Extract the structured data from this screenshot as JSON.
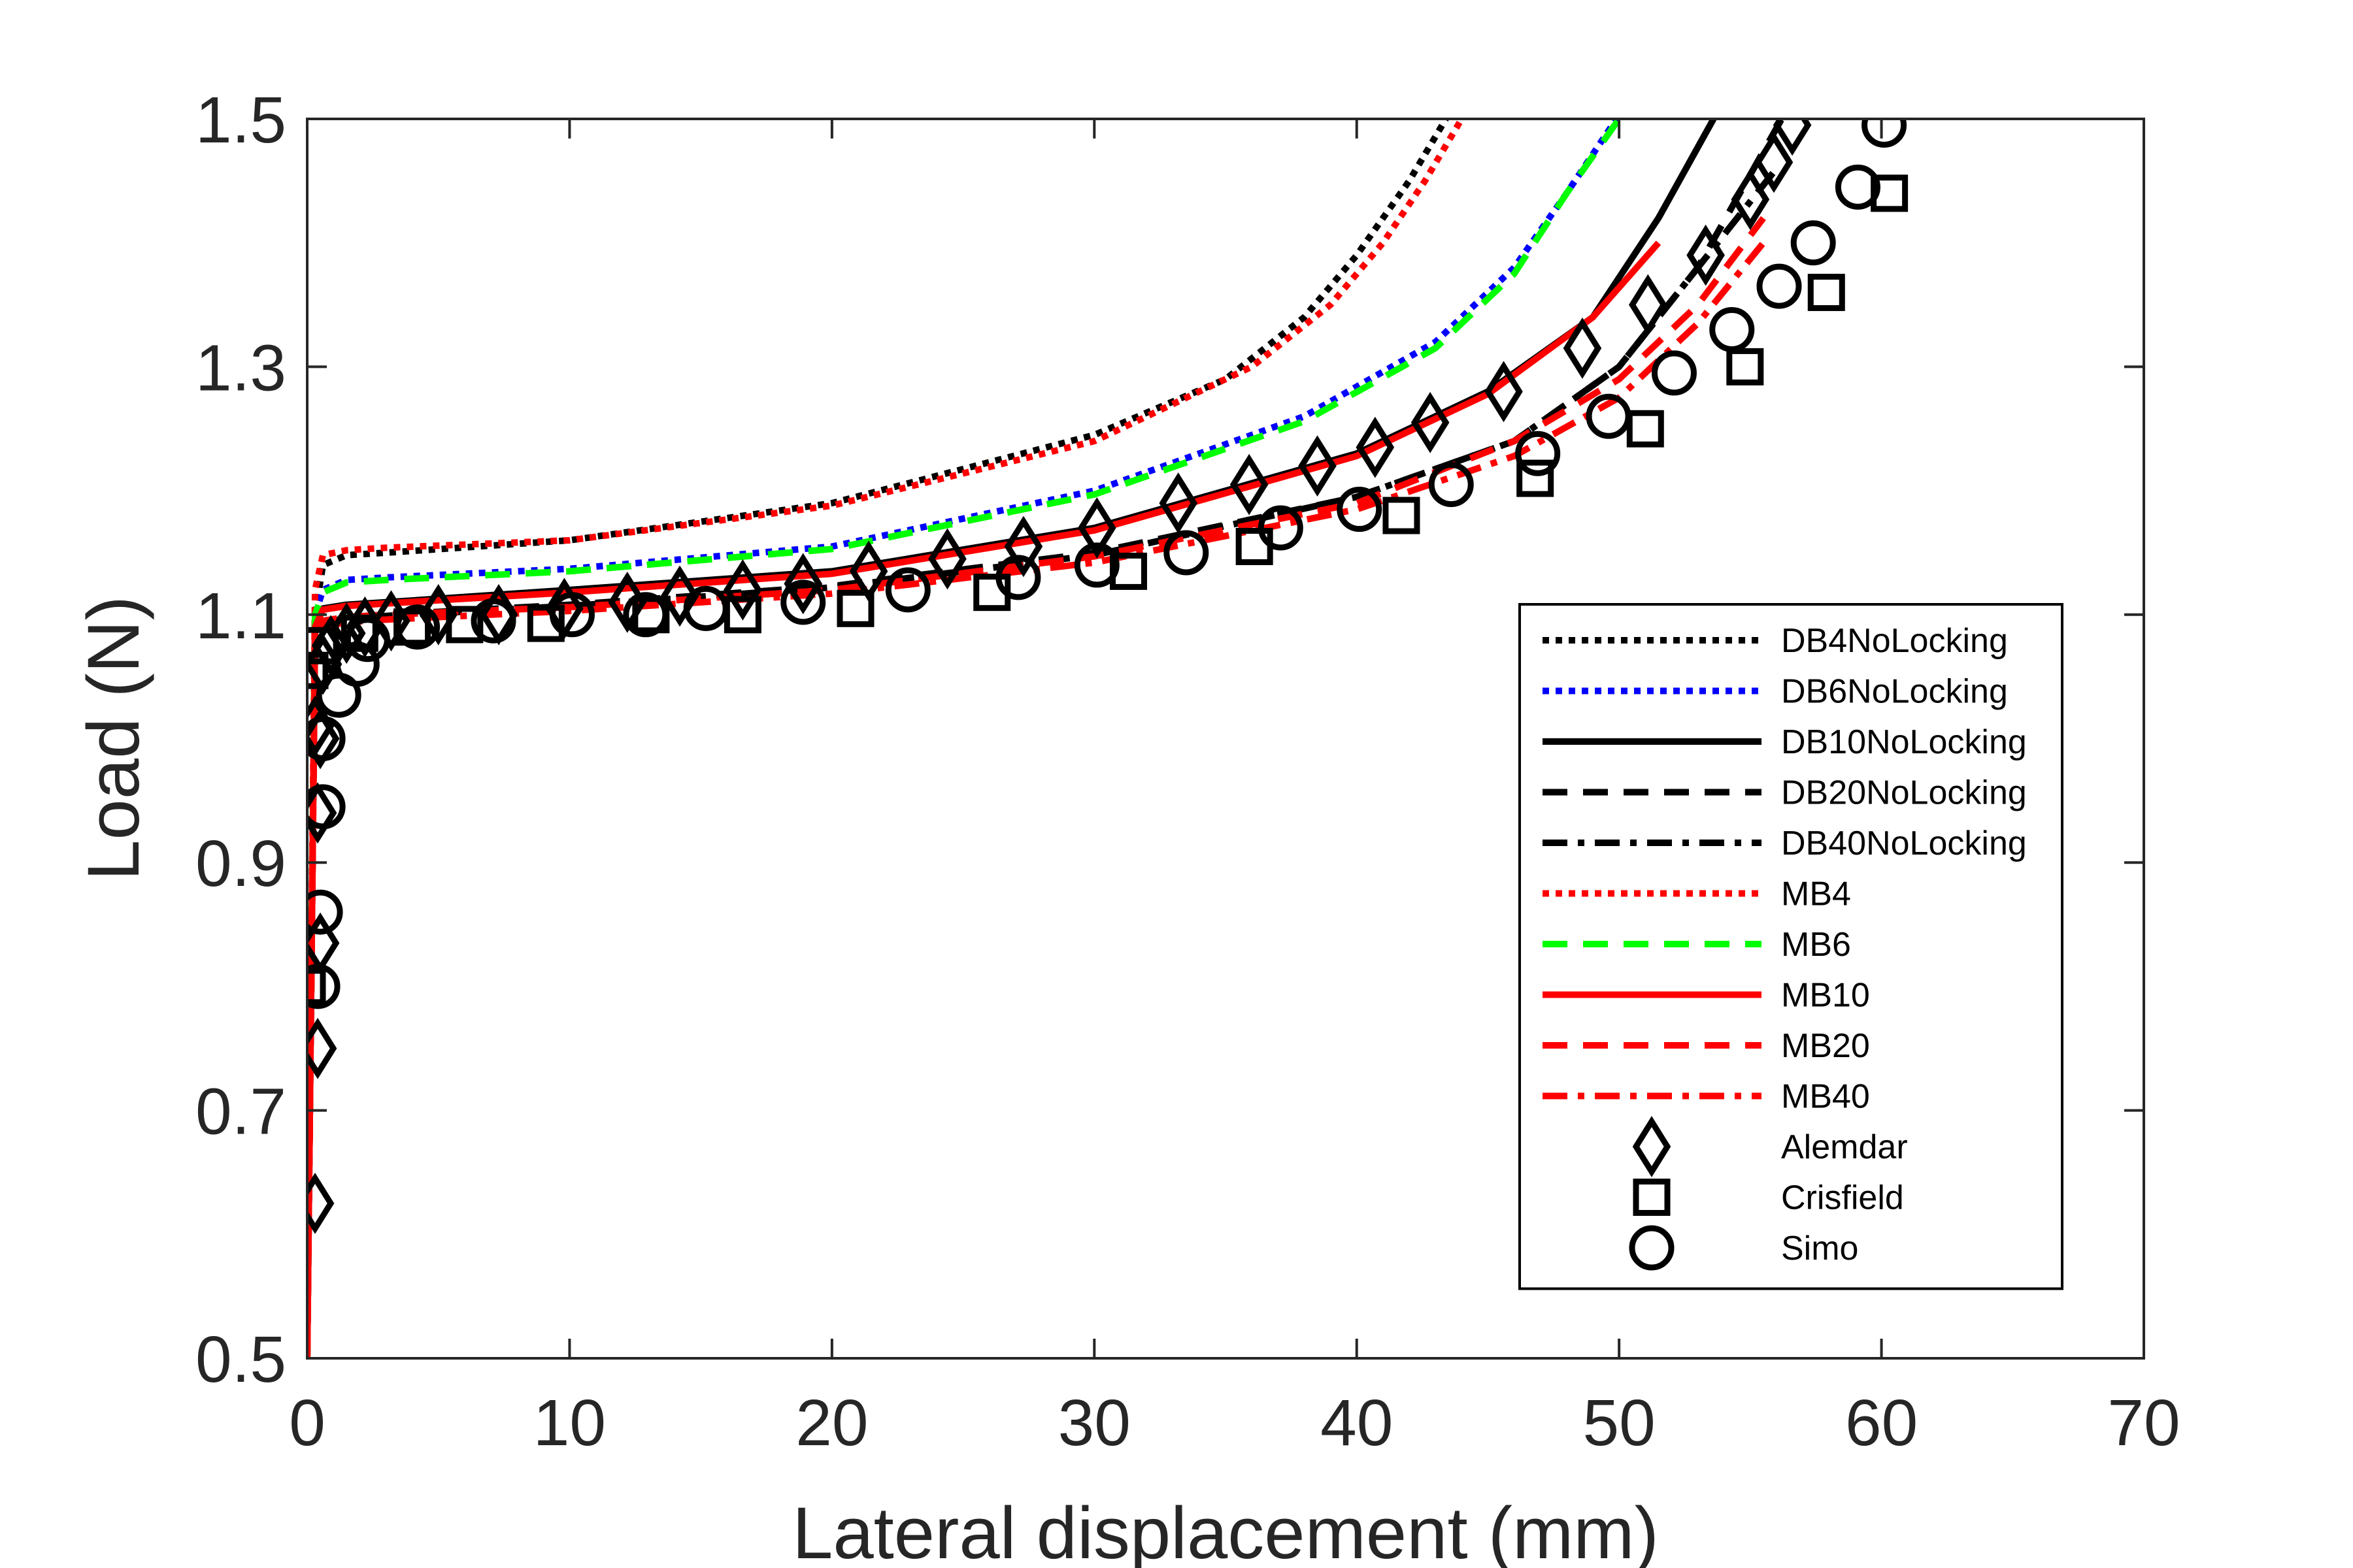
{
  "chart_data": {
    "type": "line",
    "xlabel": "Lateral displacement (mm)",
    "ylabel": "Load (N)",
    "xlim": [
      0,
      70
    ],
    "ylim": [
      0.5,
      1.5
    ],
    "xticks": [
      "0",
      "10",
      "20",
      "30",
      "40",
      "50",
      "60",
      "70"
    ],
    "yticks": [
      "0.5",
      "0.7",
      "0.9",
      "1.1",
      "1.3",
      "1.5"
    ],
    "grid": false,
    "legend_position": "bottom-right",
    "series": [
      {
        "name": "DB4NoLocking",
        "kind": "line",
        "color": "#000000",
        "dash": "dot",
        "x": [
          0,
          0.3,
          0.6,
          1.5,
          3,
          10,
          20,
          30,
          35,
          38,
          40,
          42,
          43.4
        ],
        "y": [
          0.5,
          1.1,
          1.14,
          1.148,
          1.15,
          1.16,
          1.19,
          1.245,
          1.29,
          1.34,
          1.39,
          1.45,
          1.5
        ]
      },
      {
        "name": "DB6NoLocking",
        "kind": "line",
        "color": "#0000ff",
        "dash": "dot",
        "x": [
          0,
          0.3,
          0.6,
          1.5,
          3,
          10,
          20,
          30,
          38,
          43,
          46,
          48,
          49.9
        ],
        "y": [
          0.5,
          1.1,
          1.12,
          1.128,
          1.13,
          1.137,
          1.155,
          1.2,
          1.26,
          1.32,
          1.38,
          1.44,
          1.5
        ]
      },
      {
        "name": "DB10NoLocking",
        "kind": "line",
        "color": "#000000",
        "dash": "solid",
        "x": [
          0,
          0.3,
          0.6,
          1.5,
          3,
          10,
          20,
          30,
          40,
          45,
          49,
          51.5,
          53.6
        ],
        "y": [
          0.5,
          1.09,
          1.105,
          1.108,
          1.11,
          1.12,
          1.135,
          1.17,
          1.23,
          1.28,
          1.34,
          1.42,
          1.5
        ]
      },
      {
        "name": "DB20NoLocking",
        "kind": "line",
        "color": "#000000",
        "dash": "dash",
        "x": [
          0,
          0.3,
          0.6,
          1.5,
          3,
          10,
          20,
          30,
          40,
          46,
          50,
          53,
          56.2
        ],
        "y": [
          0.5,
          1.085,
          1.095,
          1.098,
          1.1,
          1.108,
          1.123,
          1.15,
          1.195,
          1.24,
          1.3,
          1.38,
          1.5
        ]
      },
      {
        "name": "DB40NoLocking",
        "kind": "line",
        "color": "#000000",
        "dash": "dashdot",
        "x": [
          0,
          0.3,
          0.6,
          1.5,
          3,
          10,
          20,
          30,
          40,
          46,
          50,
          53,
          56
        ],
        "y": [
          0.5,
          1.085,
          1.094,
          1.097,
          1.099,
          1.107,
          1.122,
          1.148,
          1.195,
          1.24,
          1.3,
          1.38,
          1.46
        ]
      },
      {
        "name": "MB4",
        "kind": "line",
        "color": "#ff0000",
        "dash": "dot",
        "x": [
          0,
          0.3,
          0.6,
          1.5,
          3,
          10,
          20,
          30,
          36,
          39,
          41,
          42.6,
          44
        ],
        "y": [
          0.5,
          1.12,
          1.148,
          1.152,
          1.154,
          1.16,
          1.188,
          1.24,
          1.3,
          1.35,
          1.4,
          1.45,
          1.5
        ]
      },
      {
        "name": "MB6",
        "kind": "line",
        "color": "#00ff00",
        "dash": "dash",
        "x": [
          0,
          0.3,
          0.6,
          1.5,
          3,
          10,
          20,
          30,
          38,
          43,
          46,
          48,
          50
        ],
        "y": [
          0.5,
          1.1,
          1.118,
          1.126,
          1.128,
          1.135,
          1.153,
          1.197,
          1.256,
          1.315,
          1.375,
          1.44,
          1.5
        ]
      },
      {
        "name": "MB10",
        "kind": "line",
        "color": "#ff0000",
        "dash": "solid",
        "x": [
          0,
          0.3,
          0.6,
          1.5,
          3,
          10,
          20,
          30,
          40,
          45,
          49,
          51.5
        ],
        "y": [
          0.5,
          1.09,
          1.104,
          1.107,
          1.109,
          1.118,
          1.133,
          1.168,
          1.228,
          1.278,
          1.34,
          1.4
        ]
      },
      {
        "name": "MB20",
        "kind": "line",
        "color": "#ff0000",
        "dash": "dash",
        "x": [
          0,
          0.3,
          0.6,
          1.5,
          3,
          10,
          20,
          30,
          40,
          46,
          50,
          53,
          55.5
        ],
        "y": [
          0.5,
          1.085,
          1.095,
          1.098,
          1.1,
          1.106,
          1.12,
          1.147,
          1.19,
          1.24,
          1.29,
          1.35,
          1.42
        ]
      },
      {
        "name": "MB40",
        "kind": "line",
        "color": "#ff0000",
        "dash": "dashdot",
        "x": [
          0,
          0.3,
          0.6,
          1.5,
          3,
          10,
          20,
          30,
          40,
          46,
          50,
          53,
          55.5
        ],
        "y": [
          0.5,
          1.08,
          1.09,
          1.094,
          1.096,
          1.103,
          1.117,
          1.142,
          1.185,
          1.228,
          1.275,
          1.335,
          1.4
        ]
      },
      {
        "name": "Alemdar",
        "kind": "marker",
        "marker": "diamond",
        "color": "#000000",
        "x": [
          0.3,
          0.4,
          0.5,
          0.4,
          0.5,
          0.3,
          0.6,
          0.9,
          1.5,
          2.2,
          3.2,
          5.0,
          7.3,
          9.8,
          12.2,
          14.2,
          16.6,
          18.9,
          21.4,
          24.4,
          27.3,
          30.1,
          33.2,
          35.9,
          38.5,
          40.7,
          42.8,
          45.6,
          48.6,
          51.1,
          53.3,
          55.0,
          55.9,
          56.6
        ],
        "y": [
          0.625,
          0.75,
          0.835,
          0.94,
          1.0,
          1.01,
          1.06,
          1.075,
          1.085,
          1.09,
          1.095,
          1.1,
          1.1,
          1.105,
          1.11,
          1.115,
          1.12,
          1.125,
          1.135,
          1.145,
          1.155,
          1.17,
          1.19,
          1.205,
          1.22,
          1.235,
          1.255,
          1.28,
          1.315,
          1.35,
          1.39,
          1.435,
          1.465,
          1.495
        ]
      },
      {
        "name": "Crisfield",
        "kind": "marker",
        "marker": "square",
        "color": "#000000",
        "x": [
          0,
          0.1,
          0.5,
          2.0,
          4.0,
          6.0,
          9.1,
          13.1,
          16.6,
          20.9,
          26.1,
          31.3,
          36.1,
          41.7,
          46.8,
          51.0,
          54.8,
          57.9,
          60.3
        ],
        "y": [
          0.8,
          1.055,
          1.075,
          1.085,
          1.09,
          1.092,
          1.093,
          1.1,
          1.1,
          1.105,
          1.118,
          1.135,
          1.155,
          1.18,
          1.21,
          1.25,
          1.3,
          1.36,
          1.44
        ]
      },
      {
        "name": "Simo",
        "kind": "marker",
        "marker": "circle",
        "color": "#000000",
        "x": [
          0.4,
          0.5,
          0.6,
          0.6,
          1.2,
          1.9,
          2.3,
          4.2,
          7.1,
          10.1,
          12.9,
          15.2,
          18.9,
          22.9,
          27.1,
          30.1,
          33.5,
          37.1,
          40.1,
          43.6,
          46.9,
          49.6,
          52.1,
          54.3,
          56.1,
          57.4,
          59.1,
          60.1
        ],
        "y": [
          0.8,
          0.86,
          0.945,
          1.0,
          1.035,
          1.06,
          1.08,
          1.09,
          1.095,
          1.1,
          1.1,
          1.105,
          1.11,
          1.12,
          1.13,
          1.14,
          1.15,
          1.17,
          1.185,
          1.205,
          1.23,
          1.26,
          1.295,
          1.33,
          1.365,
          1.4,
          1.445,
          1.495
        ]
      }
    ]
  }
}
